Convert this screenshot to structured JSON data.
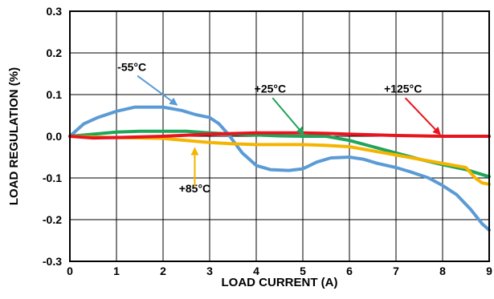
{
  "chart_data": {
    "type": "line",
    "title": "",
    "xlabel": "LOAD CURRENT (A)",
    "ylabel": "LOAD REGULATION (%)",
    "xlim": [
      0,
      9
    ],
    "ylim": [
      -0.3,
      0.3
    ],
    "x_ticks": [
      0,
      1,
      2,
      3,
      4,
      5,
      6,
      7,
      8,
      9
    ],
    "y_ticks": [
      0.3,
      0.2,
      0.1,
      0.0,
      -0.1,
      -0.2,
      -0.3
    ],
    "y_tick_labels": [
      "0.3",
      "0.2",
      "0.1",
      "0.0",
      "-0.1",
      "-0.2",
      "-0.3"
    ],
    "grid": true,
    "series": [
      {
        "name": "-55°C",
        "color": "#5b9bd5",
        "points": [
          [
            0,
            0
          ],
          [
            0.3,
            0.03
          ],
          [
            0.6,
            0.045
          ],
          [
            1.0,
            0.06
          ],
          [
            1.4,
            0.07
          ],
          [
            2.0,
            0.07
          ],
          [
            2.4,
            0.062
          ],
          [
            2.7,
            0.052
          ],
          [
            3.0,
            0.045
          ],
          [
            3.2,
            0.03
          ],
          [
            3.4,
            0.005
          ],
          [
            3.7,
            -0.04
          ],
          [
            4.0,
            -0.07
          ],
          [
            4.3,
            -0.08
          ],
          [
            4.7,
            -0.082
          ],
          [
            5.0,
            -0.078
          ],
          [
            5.3,
            -0.062
          ],
          [
            5.6,
            -0.052
          ],
          [
            6.0,
            -0.05
          ],
          [
            6.3,
            -0.055
          ],
          [
            6.6,
            -0.065
          ],
          [
            7.0,
            -0.075
          ],
          [
            7.3,
            -0.085
          ],
          [
            7.7,
            -0.1
          ],
          [
            8.0,
            -0.118
          ],
          [
            8.3,
            -0.14
          ],
          [
            8.6,
            -0.175
          ],
          [
            8.85,
            -0.21
          ],
          [
            9.0,
            -0.225
          ]
        ]
      },
      {
        "name": "+25°C",
        "color": "#1fa55a",
        "points": [
          [
            0,
            0
          ],
          [
            0.5,
            0.005
          ],
          [
            1.0,
            0.01
          ],
          [
            1.5,
            0.012
          ],
          [
            2.0,
            0.012
          ],
          [
            2.5,
            0.012
          ],
          [
            3.0,
            0.008
          ],
          [
            3.5,
            0.005
          ],
          [
            4.0,
            0.003
          ],
          [
            4.5,
            0.001
          ],
          [
            5.0,
            0
          ],
          [
            5.5,
            0
          ],
          [
            6.0,
            -0.01
          ],
          [
            6.5,
            -0.025
          ],
          [
            7.0,
            -0.04
          ],
          [
            7.5,
            -0.055
          ],
          [
            8.0,
            -0.068
          ],
          [
            8.5,
            -0.08
          ],
          [
            9.0,
            -0.097
          ]
        ]
      },
      {
        "name": "+85°C",
        "color": "#f5b400",
        "points": [
          [
            0,
            0
          ],
          [
            0.5,
            -0.002
          ],
          [
            1.0,
            -0.003
          ],
          [
            1.5,
            -0.004
          ],
          [
            2.0,
            -0.005
          ],
          [
            2.5,
            -0.01
          ],
          [
            3.0,
            -0.015
          ],
          [
            3.5,
            -0.018
          ],
          [
            4.0,
            -0.02
          ],
          [
            4.5,
            -0.02
          ],
          [
            5.0,
            -0.02
          ],
          [
            5.5,
            -0.022
          ],
          [
            6.0,
            -0.025
          ],
          [
            6.5,
            -0.035
          ],
          [
            7.0,
            -0.045
          ],
          [
            7.5,
            -0.055
          ],
          [
            8.0,
            -0.065
          ],
          [
            8.5,
            -0.075
          ],
          [
            8.7,
            -0.1
          ],
          [
            8.85,
            -0.112
          ],
          [
            9.0,
            -0.115
          ]
        ]
      },
      {
        "name": "+125°C",
        "color": "#e8141e",
        "points": [
          [
            0,
            0
          ],
          [
            0.5,
            -0.004
          ],
          [
            1.0,
            -0.003
          ],
          [
            2.0,
            0
          ],
          [
            3.0,
            0.005
          ],
          [
            4.0,
            0.008
          ],
          [
            5.0,
            0.008
          ],
          [
            5.5,
            0.007
          ],
          [
            6.0,
            0.005
          ],
          [
            7.0,
            0.002
          ],
          [
            8.0,
            0
          ],
          [
            9.0,
            0
          ]
        ]
      }
    ],
    "annotations": [
      {
        "text": "-55°C",
        "series": 0,
        "label_at": [
          1.33,
          0.157
        ],
        "arrow_tail": [
          1.45,
          0.145
        ],
        "arrow_head": [
          2.3,
          0.075
        ]
      },
      {
        "text": "+25°C",
        "series": 1,
        "label_at": [
          4.3,
          0.105
        ],
        "arrow_tail": [
          4.35,
          0.092
        ],
        "arrow_head": [
          5.02,
          0.004
        ]
      },
      {
        "text": "+125°C",
        "series": 3,
        "label_at": [
          7.15,
          0.105
        ],
        "arrow_tail": [
          7.2,
          0.092
        ],
        "arrow_head": [
          7.95,
          0.004
        ]
      },
      {
        "text": "+85°C",
        "series": 2,
        "label_at": [
          2.68,
          -0.135
        ],
        "arrow_tail": [
          2.68,
          -0.12
        ],
        "arrow_head": [
          2.68,
          -0.028
        ]
      }
    ]
  }
}
